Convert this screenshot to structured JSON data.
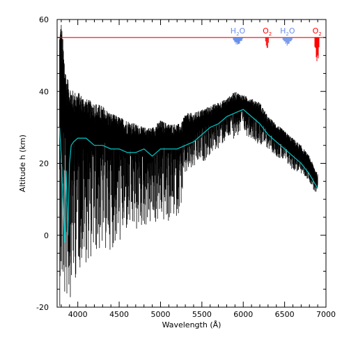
{
  "chart_data": {
    "type": "line",
    "title": "",
    "xlabel": "Wavelength (Å)",
    "ylabel": "Altitude h (km)",
    "xlim": [
      3750,
      7000
    ],
    "ylim": [
      -20,
      60
    ],
    "x_ticks": [
      4000,
      4500,
      5000,
      5500,
      6000,
      6500,
      7000
    ],
    "y_ticks": [
      -20,
      0,
      20,
      40,
      60
    ],
    "grid": false,
    "reference_line": {
      "y": 55,
      "color": "#ff0000"
    },
    "absorption_bands": [
      {
        "label": "H",
        "sub": "2",
        "suffix": "O",
        "color": "#6a8fe8",
        "x_range": [
          5880,
          5990
        ]
      },
      {
        "label": "O",
        "sub": "2",
        "suffix": "",
        "color": "#ff0000",
        "x_range": [
          6270,
          6310
        ]
      },
      {
        "label": "H",
        "sub": "2",
        "suffix": "O",
        "color": "#6a8fe8",
        "x_range": [
          6480,
          6590
        ]
      },
      {
        "label": "O",
        "sub": "2",
        "suffix": "",
        "color": "#ff0000",
        "x_range": [
          6865,
          6920
        ]
      }
    ],
    "series": [
      {
        "color": "#000000",
        "style": "noisy-band",
        "x": [
          3780,
          3800,
          3830,
          3860,
          3900,
          3950,
          4000,
          4100,
          4200,
          4300,
          4400,
          4500,
          4600,
          4700,
          4800,
          4900,
          5000,
          5100,
          5200,
          5250,
          5300,
          5400,
          5500,
          5600,
          5700,
          5800,
          5900,
          6000,
          6100,
          6200,
          6300,
          6400,
          6500,
          6600,
          6700,
          6800,
          6900
        ],
        "center": [
          25,
          34,
          30,
          28,
          27,
          27,
          28,
          27,
          26,
          26,
          25,
          25,
          24,
          24,
          25,
          24,
          25,
          25,
          25,
          25,
          27,
          28,
          30,
          31,
          32,
          34,
          35,
          35,
          34,
          32,
          29,
          27,
          25,
          23,
          21,
          18,
          14
        ],
        "high": [
          60,
          60,
          52,
          45,
          42,
          40,
          40,
          38,
          37,
          36,
          34,
          33,
          32,
          31,
          30,
          30,
          32,
          31,
          31,
          31,
          34,
          34,
          35,
          36,
          37,
          38,
          40,
          39,
          38,
          37,
          33,
          31,
          29,
          27,
          25,
          22,
          17
        ],
        "low": [
          -20,
          -20,
          -20,
          -20,
          -18,
          -15,
          -10,
          -8,
          -6,
          -5,
          -4,
          -3,
          0,
          0,
          2,
          2,
          3,
          3,
          5,
          8,
          16,
          18,
          20,
          22,
          24,
          26,
          27,
          28,
          27,
          25,
          24,
          22,
          20,
          18,
          17,
          15,
          10
        ]
      },
      {
        "color": "#00c8c8",
        "style": "line",
        "x": [
          3780,
          3800,
          3820,
          3840,
          3860,
          3880,
          3900,
          3920,
          3950,
          4000,
          4100,
          4200,
          4300,
          4400,
          4500,
          4600,
          4700,
          4800,
          4900,
          5000,
          5100,
          5200,
          5300,
          5400,
          5500,
          5600,
          5700,
          5800,
          5900,
          6000,
          6100,
          6200,
          6300,
          6400,
          6500,
          6600,
          6700,
          6800,
          6900
        ],
        "values": [
          30,
          22,
          10,
          -2,
          18,
          0,
          20,
          25,
          26,
          27,
          27,
          25,
          25,
          24,
          24,
          23,
          23,
          24,
          22,
          24,
          24,
          24,
          25,
          26,
          28,
          30,
          31,
          33,
          34,
          35,
          33,
          31,
          28,
          26,
          24,
          22,
          20,
          17,
          13
        ]
      }
    ]
  }
}
